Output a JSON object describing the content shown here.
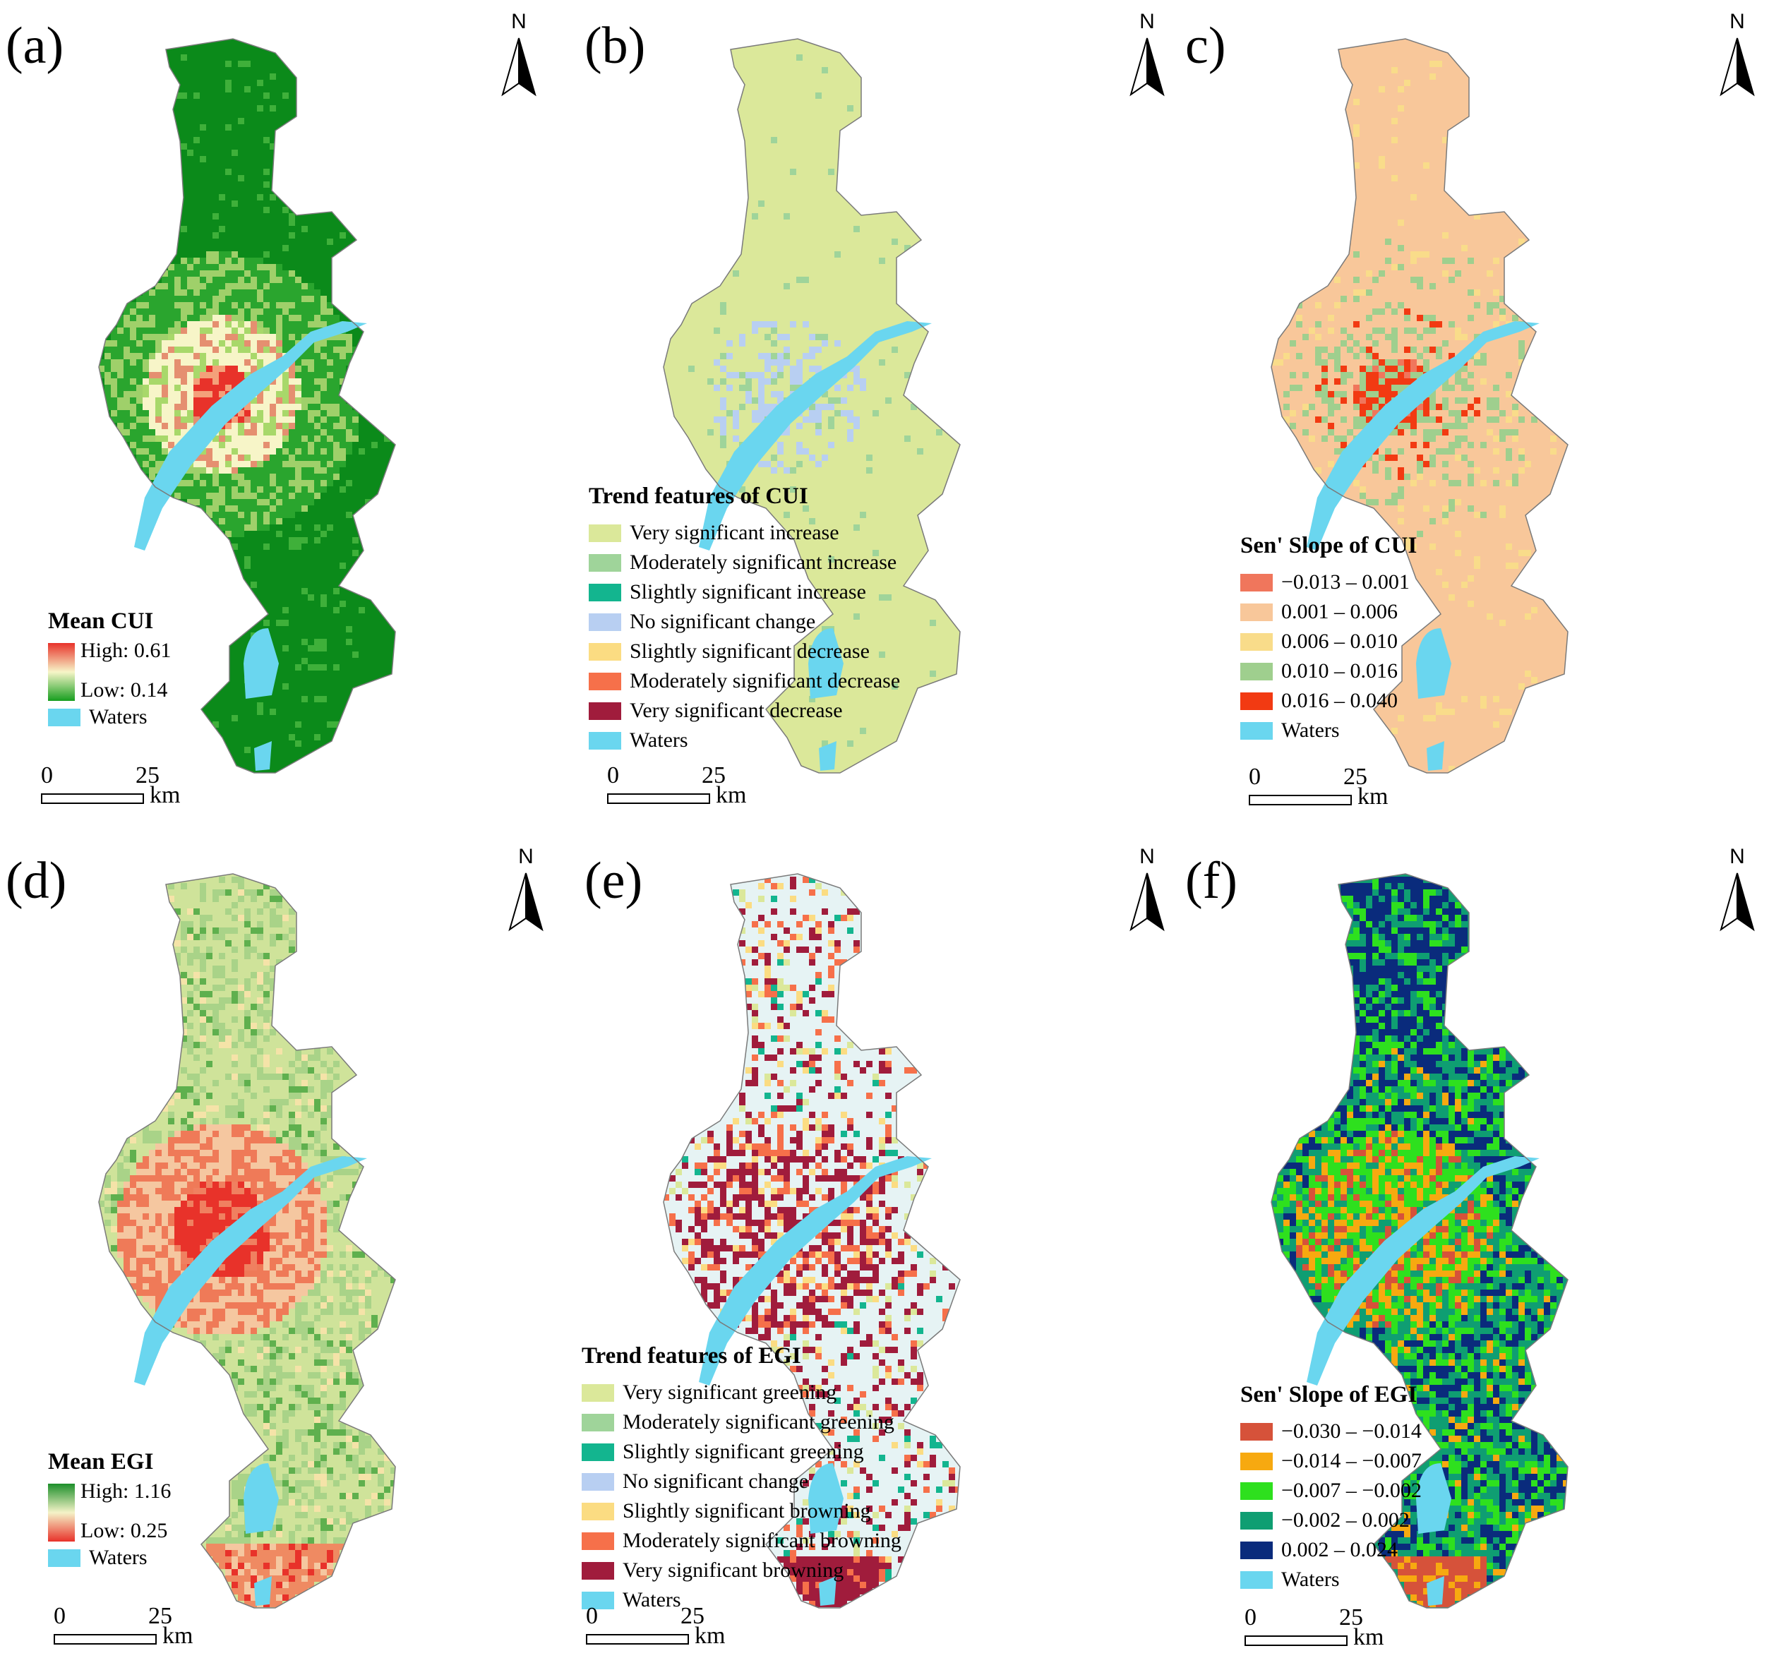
{
  "panels": [
    {
      "label": "(a)",
      "legend_type": "gradient",
      "legend_title": "Mean CUI",
      "gradient_high": "High: 0.61",
      "gradient_low": "Low: 0.14",
      "gradient_colors": [
        "#e8322a",
        "#f7f5c8",
        "#179e1f"
      ],
      "waters_label": "Waters",
      "base_color": "#0b8a1a",
      "pattern": "cui_mean"
    },
    {
      "label": "(b)",
      "legend_type": "categories",
      "legend_title": "Trend features of CUI",
      "categories": [
        {
          "label": "Very significant increase",
          "color": "#dbe89a"
        },
        {
          "label": "Moderately significant increase",
          "color": "#9fd49a"
        },
        {
          "label": "Slightly significant increase",
          "color": "#13b58f"
        },
        {
          "label": "No significant change",
          "color": "#b8cff2"
        },
        {
          "label": "Slightly significant decrease",
          "color": "#fbdc82"
        },
        {
          "label": "Moderately significant decrease",
          "color": "#f6704a"
        },
        {
          "label": "Very significant decrease",
          "color": "#a01c3c"
        },
        {
          "label": "Waters",
          "color": "#6ad6ef"
        }
      ],
      "base_color": "#dbe89a",
      "pattern": "cui_trend"
    },
    {
      "label": "c)",
      "legend_type": "categories",
      "legend_title": "Sen' Slope of CUI",
      "categories": [
        {
          "label": "−0.013 – 0.001",
          "color": "#f0765c"
        },
        {
          "label": "0.001 – 0.006",
          "color": "#f8c79a"
        },
        {
          "label": "0.006 – 0.010",
          "color": "#f9dc8a"
        },
        {
          "label": "0.010 – 0.016",
          "color": "#9fcf8e"
        },
        {
          "label": "0.016 – 0.040",
          "color": "#f23a12"
        },
        {
          "label": "Waters",
          "color": "#6ad6ef"
        }
      ],
      "base_color": "#f8c79a",
      "pattern": "cui_slope"
    },
    {
      "label": "(d)",
      "legend_type": "gradient",
      "legend_title": "Mean EGI",
      "gradient_high": "High: 1.16",
      "gradient_low": "Low: 0.25",
      "gradient_colors": [
        "#1c8f2a",
        "#f5f3c8",
        "#e8322a"
      ],
      "waters_label": "Waters",
      "base_color": "#cfe39a",
      "pattern": "egi_mean"
    },
    {
      "label": "(e)",
      "legend_type": "categories",
      "legend_title": "Trend features of EGI",
      "categories": [
        {
          "label": "Very significant greening",
          "color": "#dbe89a"
        },
        {
          "label": "Moderately significant greening",
          "color": "#9fd49a"
        },
        {
          "label": "Slightly significant greening",
          "color": "#13b58f"
        },
        {
          "label": "No significant change",
          "color": "#b8cff2"
        },
        {
          "label": "Slightly significant browning",
          "color": "#fbdc82"
        },
        {
          "label": "Moderately significant browning",
          "color": "#f6704a"
        },
        {
          "label": "Very significant browning",
          "color": "#a01c3c"
        },
        {
          "label": "Waters",
          "color": "#6ad6ef"
        }
      ],
      "base_color": "#e6f3f4",
      "pattern": "egi_trend"
    },
    {
      "label": "(f)",
      "legend_type": "categories",
      "legend_title": "Sen' Slope of EGI",
      "categories": [
        {
          "label": "−0.030 – −0.014",
          "color": "#d6523a"
        },
        {
          "label": "−0.014 – −0.007",
          "color": "#f7a910"
        },
        {
          "label": "−0.007 – −0.002",
          "color": "#2ee01e"
        },
        {
          "label": "−0.002 – 0.002",
          "color": "#0f9e72"
        },
        {
          "label": "0.002 – 0.024",
          "color": "#0a2b7c"
        },
        {
          "label": "Waters",
          "color": "#6ad6ef"
        }
      ],
      "base_color": "#0f9e72",
      "pattern": "egi_slope"
    }
  ],
  "north_label": "N",
  "scale_zero": "0",
  "scale_25": "25",
  "scale_unit": "km",
  "water_color": "#6ad6ef",
  "boundary_color": "#7a7a7a"
}
